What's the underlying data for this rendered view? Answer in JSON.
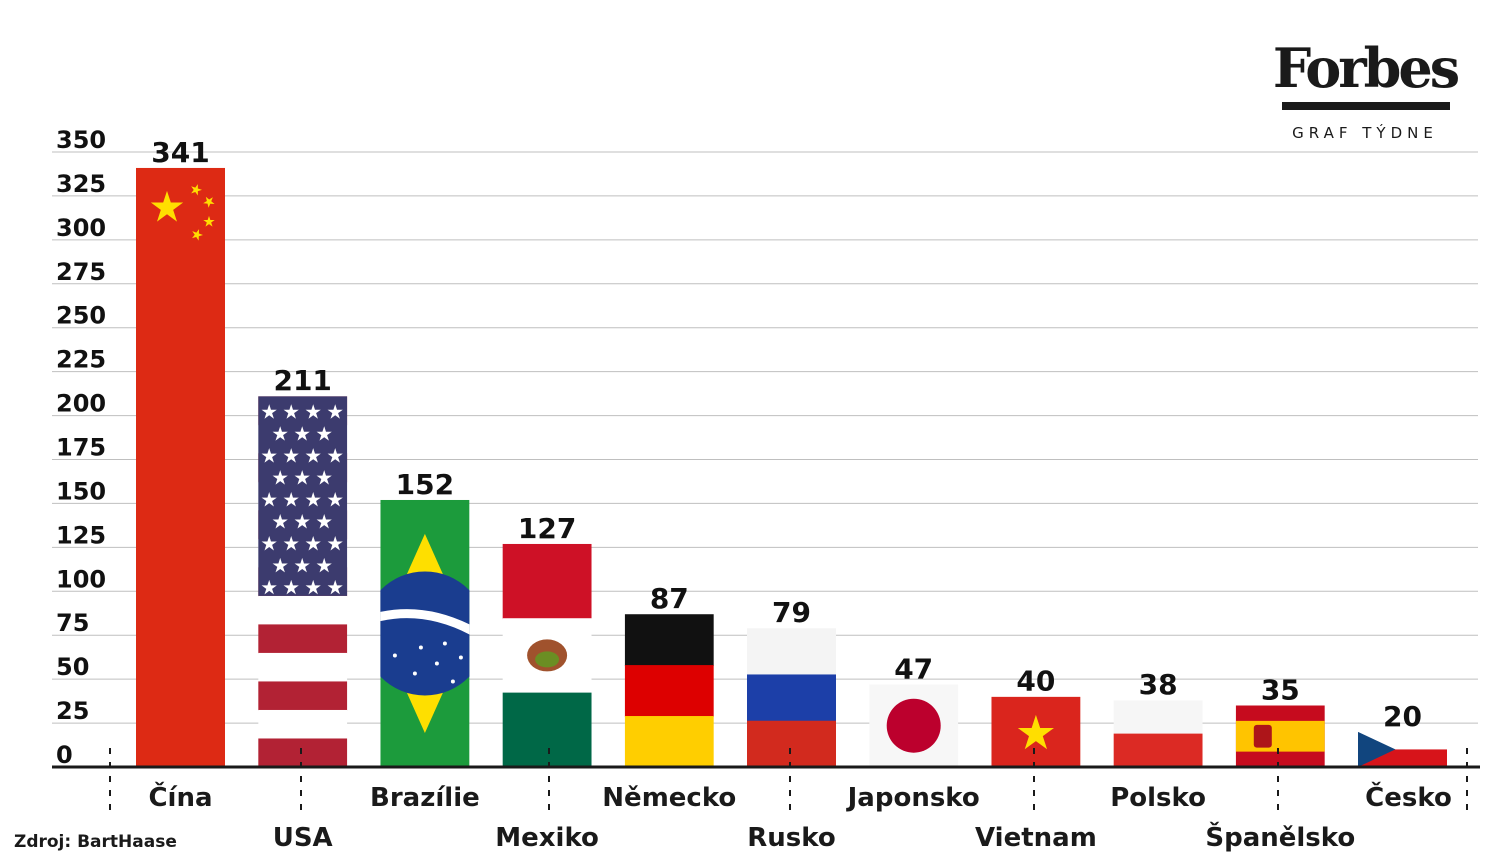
{
  "logo": {
    "brand": "Forbes",
    "subtitle": "GRAF TÝDNE"
  },
  "source": "Zdroj: BartHaase",
  "colors": {
    "highlight": "#d6124b",
    "text": "#1a1a1a",
    "grid": "#bfbfbf"
  },
  "chart_data": {
    "type": "bar",
    "title": "",
    "xlabel": "",
    "ylabel": "",
    "ylim": [
      0,
      350
    ],
    "yticks": [
      0,
      25,
      50,
      75,
      100,
      125,
      150,
      175,
      200,
      225,
      250,
      275,
      300,
      325,
      350
    ],
    "grid": true,
    "categories": [
      "Čína",
      "USA",
      "Brazílie",
      "Mexiko",
      "Německo",
      "Rusko",
      "Japonsko",
      "Vietnam",
      "Polsko",
      "Španělsko",
      "Česko"
    ],
    "values": [
      341,
      211,
      152,
      127,
      87,
      79,
      47,
      40,
      38,
      35,
      20
    ],
    "highlight_category": "Česko",
    "bar_fill": [
      "china-flag",
      "usa-flag",
      "brazil-flag",
      "mexico-flag",
      "germany-flag",
      "russia-flag",
      "japan-flag",
      "vietnam-flag",
      "poland-flag",
      "spain-flag",
      "czech-flag"
    ]
  }
}
